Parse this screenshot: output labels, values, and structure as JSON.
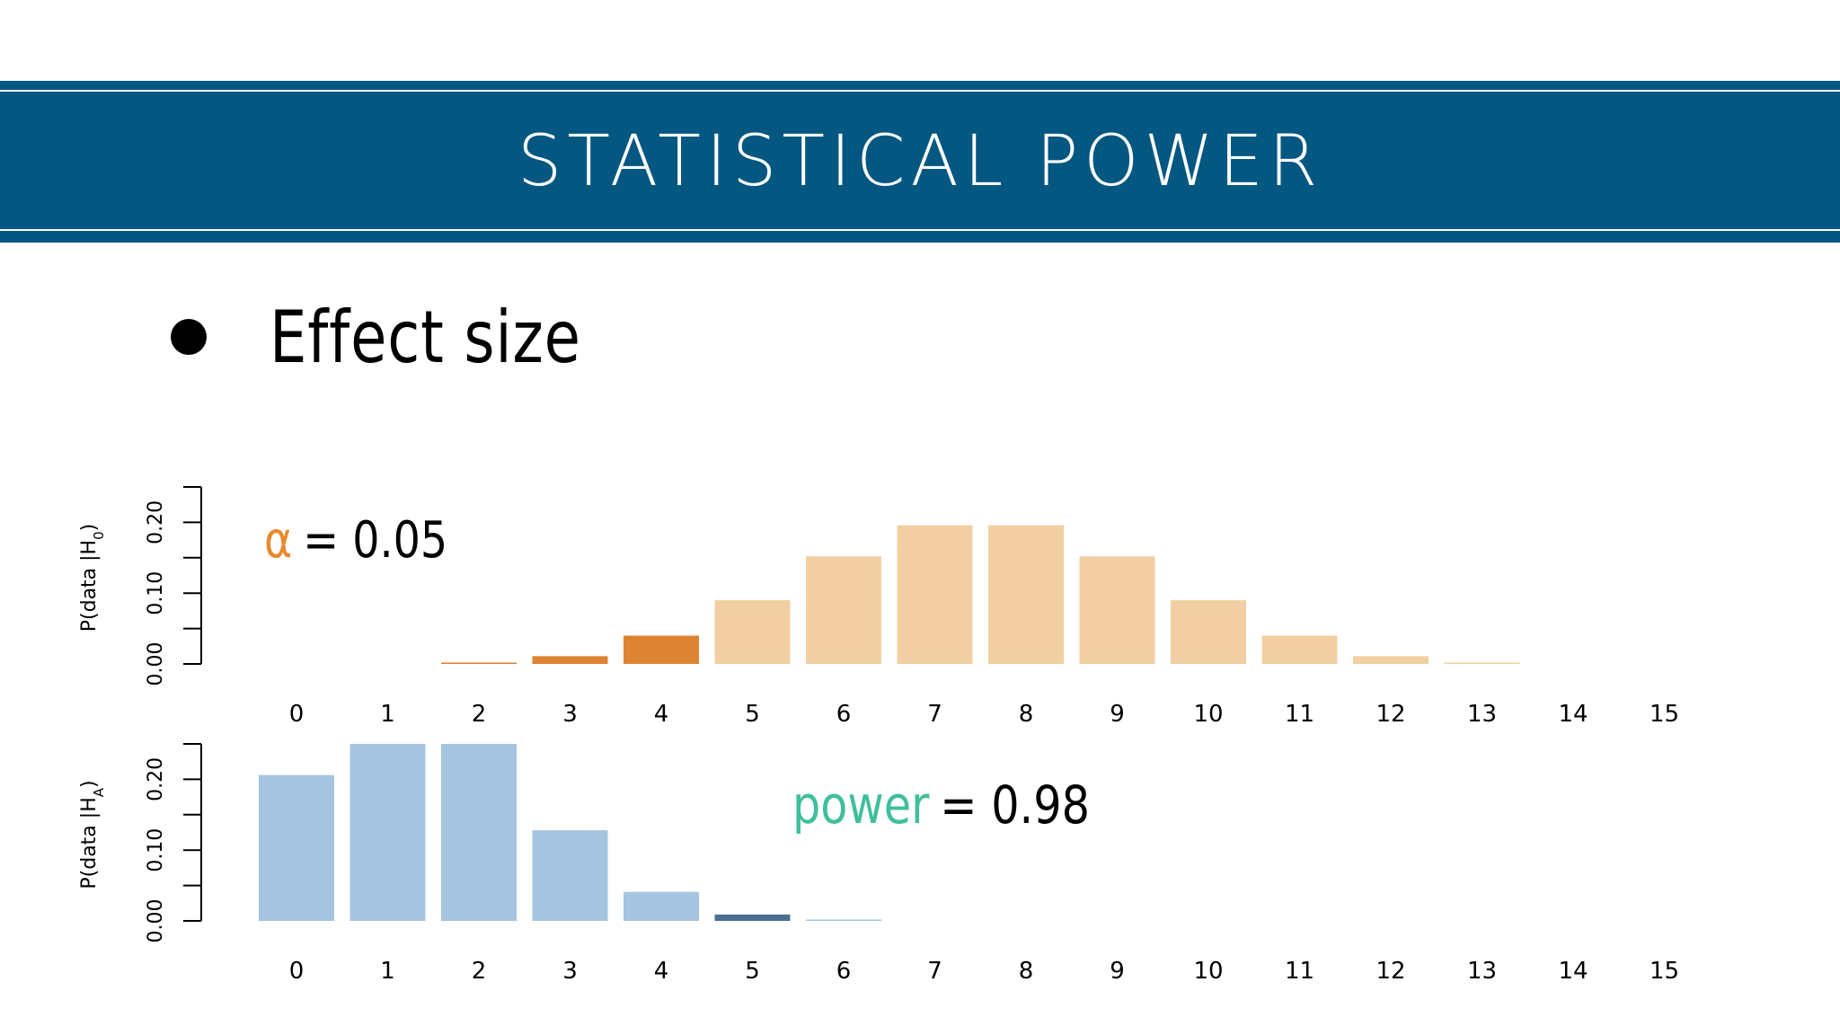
{
  "slide": {
    "title": "STATISTICAL POWER",
    "bullet": "Effect size"
  },
  "colors": {
    "banner": "#045781",
    "h0_bar": "#f2cfa3",
    "h0_highlight": "#dd8433",
    "ha_bar": "#a5c4df",
    "ha_highlight": "#4b6f91",
    "alpha_symbol": "#e88a2d",
    "power_word": "#3fbf9c"
  },
  "chart_data": [
    {
      "type": "bar",
      "name": "h0",
      "categories": [
        "0",
        "1",
        "2",
        "3",
        "4",
        "5",
        "6",
        "7",
        "8",
        "9",
        "10",
        "11",
        "12",
        "13",
        "14",
        "15"
      ],
      "values": [
        0.0,
        0.0,
        0.002,
        0.011,
        0.04,
        0.09,
        0.152,
        0.196,
        0.196,
        0.152,
        0.09,
        0.04,
        0.011,
        0.002,
        0.0,
        0.0
      ],
      "highlight": [
        false,
        false,
        true,
        true,
        true,
        false,
        false,
        false,
        false,
        false,
        false,
        false,
        false,
        false,
        false,
        false
      ],
      "ylabel": "P(data |H0)",
      "ylabel_main": "P(data |H",
      "ylabel_sub": "0",
      "ylabel_close": ")",
      "yticks": [
        "0.00",
        "0.10",
        "0.20"
      ],
      "ylim": [
        0,
        0.25
      ],
      "annotation": {
        "symbol": "α",
        "text": "= 0.05"
      }
    },
    {
      "type": "bar",
      "name": "ha",
      "categories": [
        "0",
        "1",
        "2",
        "3",
        "4",
        "5",
        "6",
        "7",
        "8",
        "9",
        "10",
        "11",
        "12",
        "13",
        "14",
        "15"
      ],
      "values": [
        0.206,
        0.25,
        0.25,
        0.128,
        0.041,
        0.009,
        0.001,
        0.0,
        0.0,
        0.0,
        0.0,
        0.0,
        0.0,
        0.0,
        0.0,
        0.0
      ],
      "highlight": [
        false,
        false,
        false,
        false,
        false,
        true,
        false,
        false,
        false,
        false,
        false,
        false,
        false,
        false,
        false,
        false
      ],
      "ylabel": "P(data |HA)",
      "ylabel_main": "P(data |H",
      "ylabel_sub": "A",
      "ylabel_close": ")",
      "yticks": [
        "0.00",
        "0.10",
        "0.20"
      ],
      "ylim": [
        0,
        0.25
      ],
      "annotation": {
        "word": "power",
        "text": "= 0.98"
      }
    }
  ]
}
